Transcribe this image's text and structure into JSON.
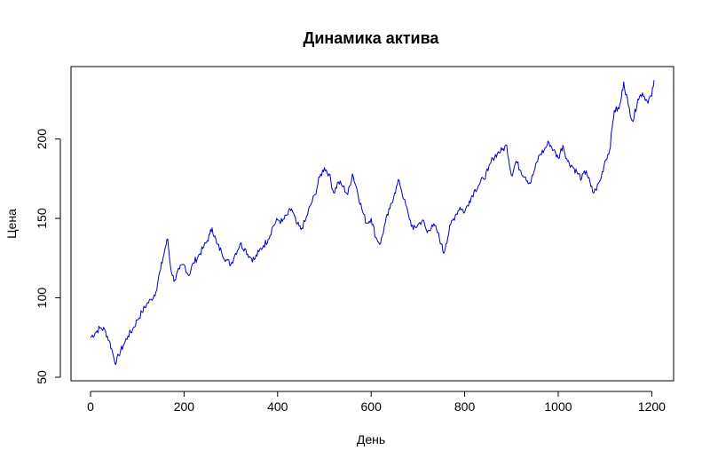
{
  "chart_data": {
    "type": "line",
    "title": "Динамика актива",
    "xlabel": "День",
    "ylabel": "Цена",
    "xlim": [
      0,
      1205
    ],
    "ylim": [
      50,
      240
    ],
    "x_ticks": [
      0,
      200,
      400,
      600,
      800,
      1000,
      1200
    ],
    "x_tick_labels": [
      "0",
      "200",
      "400",
      "600",
      "800",
      "1000",
      "1200"
    ],
    "y_ticks": [
      50,
      100,
      150,
      200
    ],
    "y_tick_labels": [
      "50",
      "100",
      "150",
      "200"
    ],
    "grid": false,
    "line_color": "#0000cc",
    "series": [
      {
        "x": [
          0,
          10,
          20,
          30,
          40,
          45,
          50,
          55,
          60,
          70,
          80,
          90,
          100,
          110,
          120,
          130,
          140,
          145,
          150,
          155,
          160,
          165,
          170,
          175,
          180,
          190,
          200,
          210,
          220,
          230,
          240,
          250,
          255,
          260,
          270,
          280,
          290,
          300,
          310,
          320,
          330,
          340,
          350,
          360,
          370,
          380,
          390,
          400,
          410,
          420,
          430,
          440,
          450,
          460,
          470,
          480,
          490,
          500,
          510,
          520,
          530,
          540,
          550,
          560,
          570,
          580,
          590,
          600,
          610,
          620,
          630,
          640,
          650,
          660,
          670,
          680,
          690,
          700,
          710,
          720,
          730,
          740,
          750,
          755,
          760,
          770,
          780,
          790,
          800,
          810,
          820,
          830,
          840,
          850,
          860,
          870,
          880,
          890,
          900,
          910,
          920,
          930,
          940,
          950,
          960,
          970,
          980,
          990,
          1000,
          1010,
          1020,
          1030,
          1040,
          1050,
          1060,
          1070,
          1075,
          1080,
          1090,
          1100,
          1110,
          1115,
          1120,
          1130,
          1135,
          1140,
          1150,
          1160,
          1170,
          1180,
          1190,
          1200,
          1205
        ],
        "y": [
          75,
          78,
          81,
          80,
          73,
          68,
          62,
          59,
          64,
          70,
          76,
          80,
          86,
          91,
          96,
          99,
          104,
          112,
          118,
          125,
          132,
          137,
          122,
          114,
          111,
          118,
          121,
          114,
          122,
          126,
          131,
          136,
          140,
          144,
          134,
          129,
          124,
          121,
          128,
          134,
          131,
          126,
          124,
          129,
          133,
          137,
          145,
          149,
          148,
          152,
          156,
          147,
          143,
          149,
          158,
          165,
          176,
          182,
          178,
          166,
          173,
          170,
          165,
          178,
          168,
          156,
          147,
          150,
          138,
          134,
          147,
          156,
          166,
          174,
          162,
          152,
          143,
          146,
          149,
          141,
          146,
          143,
          134,
          128,
          134,
          146,
          152,
          157,
          154,
          161,
          167,
          171,
          175,
          180,
          188,
          191,
          193,
          196,
          177,
          186,
          180,
          176,
          172,
          181,
          190,
          193,
          198,
          193,
          188,
          196,
          186,
          183,
          179,
          175,
          180,
          170,
          166,
          168,
          174,
          186,
          193,
          206,
          218,
          219,
          226,
          236,
          221,
          211,
          225,
          229,
          224,
          227,
          237
        ]
      }
    ]
  }
}
